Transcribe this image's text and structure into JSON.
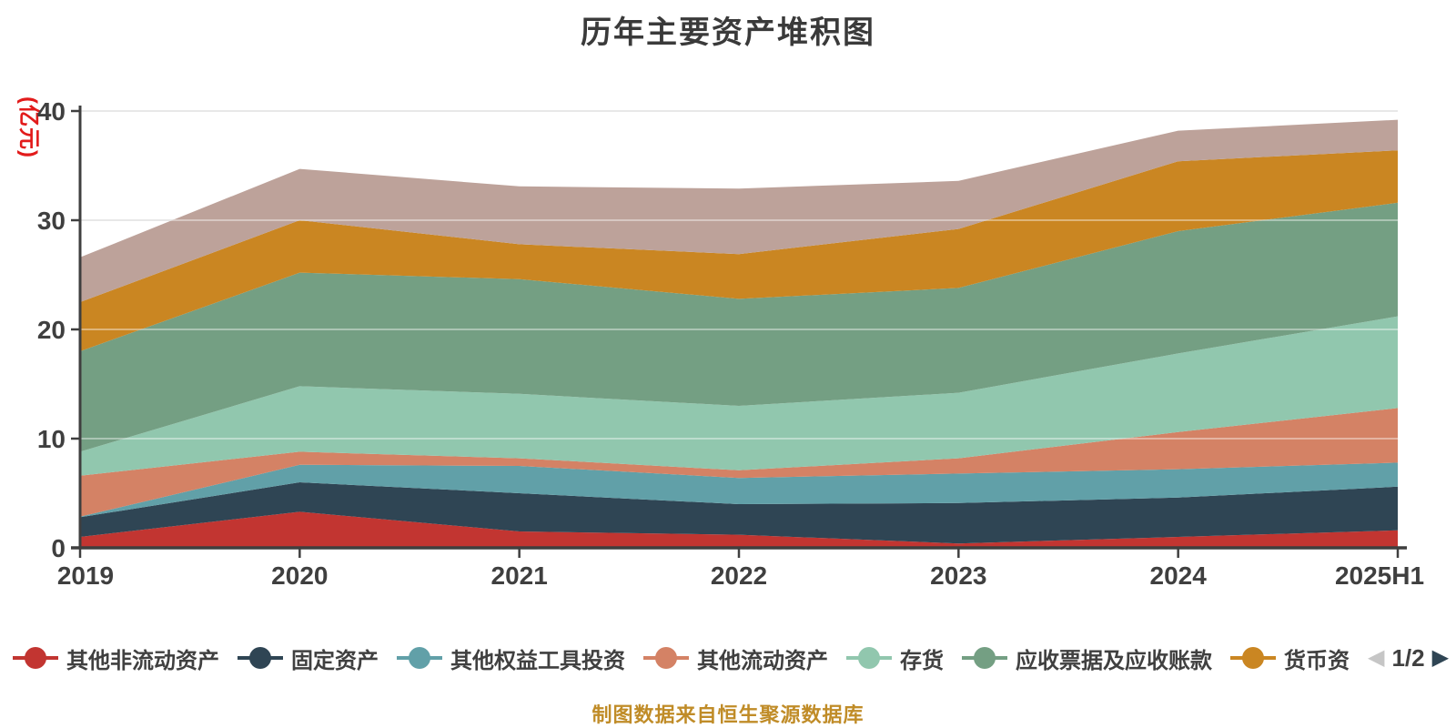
{
  "title": "历年主要资产堆积图",
  "y_axis_unit": "(亿元)",
  "footer": "制图数据来自恒生聚源数据库",
  "icons": {
    "prev": "◀",
    "next": "▶"
  },
  "colors": {
    "axis_line": "#3f3f3f",
    "axis_text": "#3f3f3f",
    "grid_line": "#d9d9d9",
    "grid_line_overlay": "rgba(255,255,255,0.4)",
    "unit_label": "#e21b1b",
    "footer_text": "#c08c28"
  },
  "legend": {
    "items": [
      {
        "label": "其他非流动资产",
        "color": "#c23531"
      },
      {
        "label": "固定资产",
        "color": "#2f4554"
      },
      {
        "label": "其他权益工具投资",
        "color": "#61a0a8"
      },
      {
        "label": "其他流动资产",
        "color": "#d48265"
      },
      {
        "label": "存货",
        "color": "#91c7ae"
      },
      {
        "label": "应收票据及应收账款",
        "color": "#749f83"
      },
      {
        "label": "货币资",
        "color": "#ca8622"
      }
    ],
    "pagination": {
      "current_page": "1/2",
      "prev_arrow_color": "#c6c6c6",
      "next_arrow_color": "#2f4554"
    }
  },
  "chart_data": {
    "type": "area",
    "stacked": true,
    "title": "历年主要资产堆积图",
    "ylabel": "(亿元)",
    "xlabel": "",
    "grid": true,
    "legend_position": "bottom",
    "x_labels": [
      "2019",
      "2020",
      "2021",
      "2022",
      "2023",
      "2024",
      "2025H1"
    ],
    "y_ticks": [
      0,
      10,
      20,
      30,
      40
    ],
    "ylim": [
      0,
      40
    ],
    "series": [
      {
        "name": "其他非流动资产",
        "color": "#c23531",
        "values": [
          1.0,
          3.3,
          1.5,
          1.2,
          0.4,
          1.0,
          1.6
        ]
      },
      {
        "name": "固定资产",
        "color": "#2f4554",
        "values": [
          1.8,
          2.7,
          3.5,
          2.8,
          3.7,
          3.6,
          4.0
        ]
      },
      {
        "name": "其他权益工具投资",
        "color": "#61a0a8",
        "values": [
          0.05,
          1.6,
          2.5,
          2.4,
          2.7,
          2.6,
          2.2
        ]
      },
      {
        "name": "其他流动资产",
        "color": "#d48265",
        "values": [
          3.75,
          1.2,
          0.7,
          0.7,
          1.4,
          3.4,
          5.0
        ]
      },
      {
        "name": "存货",
        "color": "#91c7ae",
        "values": [
          2.2,
          6.0,
          5.9,
          5.9,
          6.0,
          7.2,
          8.4
        ]
      },
      {
        "name": "应收票据及应收账款",
        "color": "#749f83",
        "values": [
          9.2,
          10.4,
          10.5,
          9.8,
          9.6,
          11.2,
          10.4
        ]
      },
      {
        "name": "货币资",
        "color": "#ca8622",
        "values": [
          4.5,
          4.8,
          3.2,
          4.1,
          5.4,
          6.4,
          4.8
        ]
      },
      {
        "name": "",
        "color": "#bda29a",
        "values": [
          4.1,
          4.7,
          5.3,
          6.0,
          4.4,
          2.8,
          2.8
        ]
      }
    ]
  }
}
